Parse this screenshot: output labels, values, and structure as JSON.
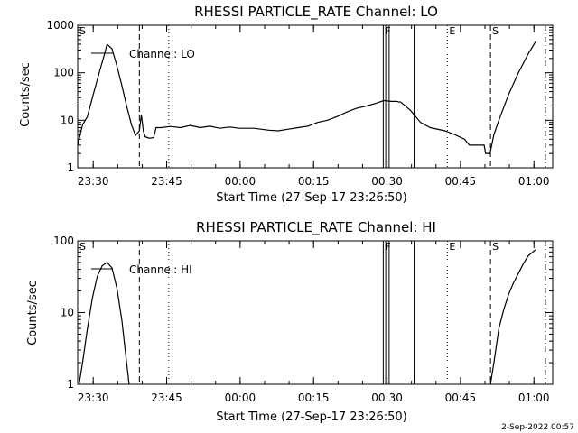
{
  "footer_timestamp": "2-Sep-2022 00:57",
  "chart_data": [
    {
      "type": "line",
      "title": "RHESSI PARTICLE_RATE Channel: LO",
      "xlabel": "Start Time (27-Sep-17 23:26:50)",
      "ylabel": "Counts/sec",
      "legend": "Channel: LO",
      "yscale": "log",
      "ylim": [
        1,
        1000
      ],
      "ytick_labels": [
        "1",
        "10",
        "100",
        "1000"
      ],
      "x_unit": "minutes after 23:26:50",
      "xlim": [
        0,
        97
      ],
      "xtick_labels": [
        "23:30",
        "23:45",
        "00:00",
        "00:15",
        "00:30",
        "00:45",
        "01:00"
      ],
      "event_markers": [
        {
          "label": "S",
          "x": 0.0
        },
        {
          "label": "F",
          "x": 62.4
        },
        {
          "label": "E",
          "x": 75.5
        },
        {
          "label": "S",
          "x": 84.3
        }
      ],
      "series": [
        {
          "name": "Channel: LO",
          "points": [
            [
              0.0,
              3.0
            ],
            [
              1.0,
              8.0
            ],
            [
              2.0,
              12.0
            ],
            [
              3.0,
              30.0
            ],
            [
              4.5,
              110.0
            ],
            [
              5.5,
              250.0
            ],
            [
              6.0,
              400.0
            ],
            [
              7.0,
              320.0
            ],
            [
              8.0,
              140.0
            ],
            [
              9.0,
              55.0
            ],
            [
              10.0,
              20.0
            ],
            [
              11.0,
              8.0
            ],
            [
              11.8,
              4.8
            ],
            [
              12.6,
              6.0
            ],
            [
              13.0,
              13.0
            ],
            [
              13.4,
              6.0
            ],
            [
              13.8,
              4.5
            ],
            [
              14.6,
              4.2
            ],
            [
              15.5,
              4.3
            ],
            [
              16.0,
              7.0
            ],
            [
              17.0,
              7.0
            ],
            [
              19.0,
              7.4
            ],
            [
              21.0,
              7.0
            ],
            [
              23.0,
              7.8
            ],
            [
              25.0,
              7.0
            ],
            [
              27.0,
              7.5
            ],
            [
              29.0,
              6.8
            ],
            [
              31.0,
              7.2
            ],
            [
              33.0,
              6.8
            ],
            [
              36.0,
              6.8
            ],
            [
              39.0,
              6.2
            ],
            [
              41.0,
              6.0
            ],
            [
              43.0,
              6.5
            ],
            [
              45.0,
              7.0
            ],
            [
              47.0,
              7.5
            ],
            [
              49.0,
              9.0
            ],
            [
              51.0,
              10.0
            ],
            [
              53.0,
              12.0
            ],
            [
              55.0,
              15.0
            ],
            [
              57.0,
              18.0
            ],
            [
              59.0,
              20.0
            ],
            [
              61.0,
              23.0
            ],
            [
              62.5,
              26.0
            ],
            [
              64.0,
              25.0
            ],
            [
              65.0,
              25.0
            ],
            [
              66.0,
              24.0
            ],
            [
              68.0,
              16.0
            ],
            [
              70.0,
              9.0
            ],
            [
              72.0,
              7.0
            ],
            [
              75.0,
              6.0
            ],
            [
              77.0,
              5.0
            ],
            [
              79.0,
              4.0
            ],
            [
              80.0,
              3.0
            ],
            [
              82.0,
              3.0
            ],
            [
              83.0,
              3.0
            ],
            [
              83.3,
              2.0
            ],
            [
              84.2,
              2.0
            ],
            [
              85.0,
              5.0
            ],
            [
              86.0,
              10.0
            ],
            [
              88.0,
              35.0
            ],
            [
              90.0,
              100.0
            ],
            [
              92.0,
              250.0
            ],
            [
              93.5,
              450.0
            ]
          ]
        }
      ]
    },
    {
      "type": "line",
      "title": "RHESSI PARTICLE_RATE Channel: HI",
      "xlabel": "Start Time (27-Sep-17 23:26:50)",
      "ylabel": "Counts/sec",
      "legend": "Channel: HI",
      "yscale": "log",
      "ylim": [
        1,
        100
      ],
      "ytick_labels": [
        "1",
        "10",
        "100"
      ],
      "x_unit": "minutes after 23:26:50",
      "xlim": [
        0,
        97
      ],
      "xtick_labels": [
        "23:30",
        "23:45",
        "00:00",
        "00:15",
        "00:30",
        "00:45",
        "01:00"
      ],
      "event_markers": [
        {
          "label": "S",
          "x": 0.0
        },
        {
          "label": "F",
          "x": 62.4
        },
        {
          "label": "E",
          "x": 75.5
        },
        {
          "label": "S",
          "x": 84.3
        }
      ],
      "series": [
        {
          "name": "Channel: HI",
          "points": [
            [
              0.3,
              1.0
            ],
            [
              1.0,
              2.0
            ],
            [
              2.0,
              6.0
            ],
            [
              3.0,
              16.0
            ],
            [
              4.0,
              32.0
            ],
            [
              5.0,
              45.0
            ],
            [
              6.0,
              50.0
            ],
            [
              7.0,
              42.0
            ],
            [
              8.0,
              22.0
            ],
            [
              9.0,
              8.0
            ],
            [
              10.0,
              2.0
            ],
            [
              10.5,
              1.0
            ],
            null,
            [
              84.3,
              1.0
            ],
            [
              85.0,
              2.0
            ],
            [
              86.0,
              6.0
            ],
            [
              87.0,
              11.0
            ],
            [
              88.0,
              18.0
            ],
            [
              89.0,
              26.0
            ],
            [
              90.0,
              35.0
            ],
            [
              91.0,
              48.0
            ],
            [
              92.0,
              62.0
            ],
            [
              93.5,
              75.0
            ]
          ]
        }
      ]
    }
  ]
}
